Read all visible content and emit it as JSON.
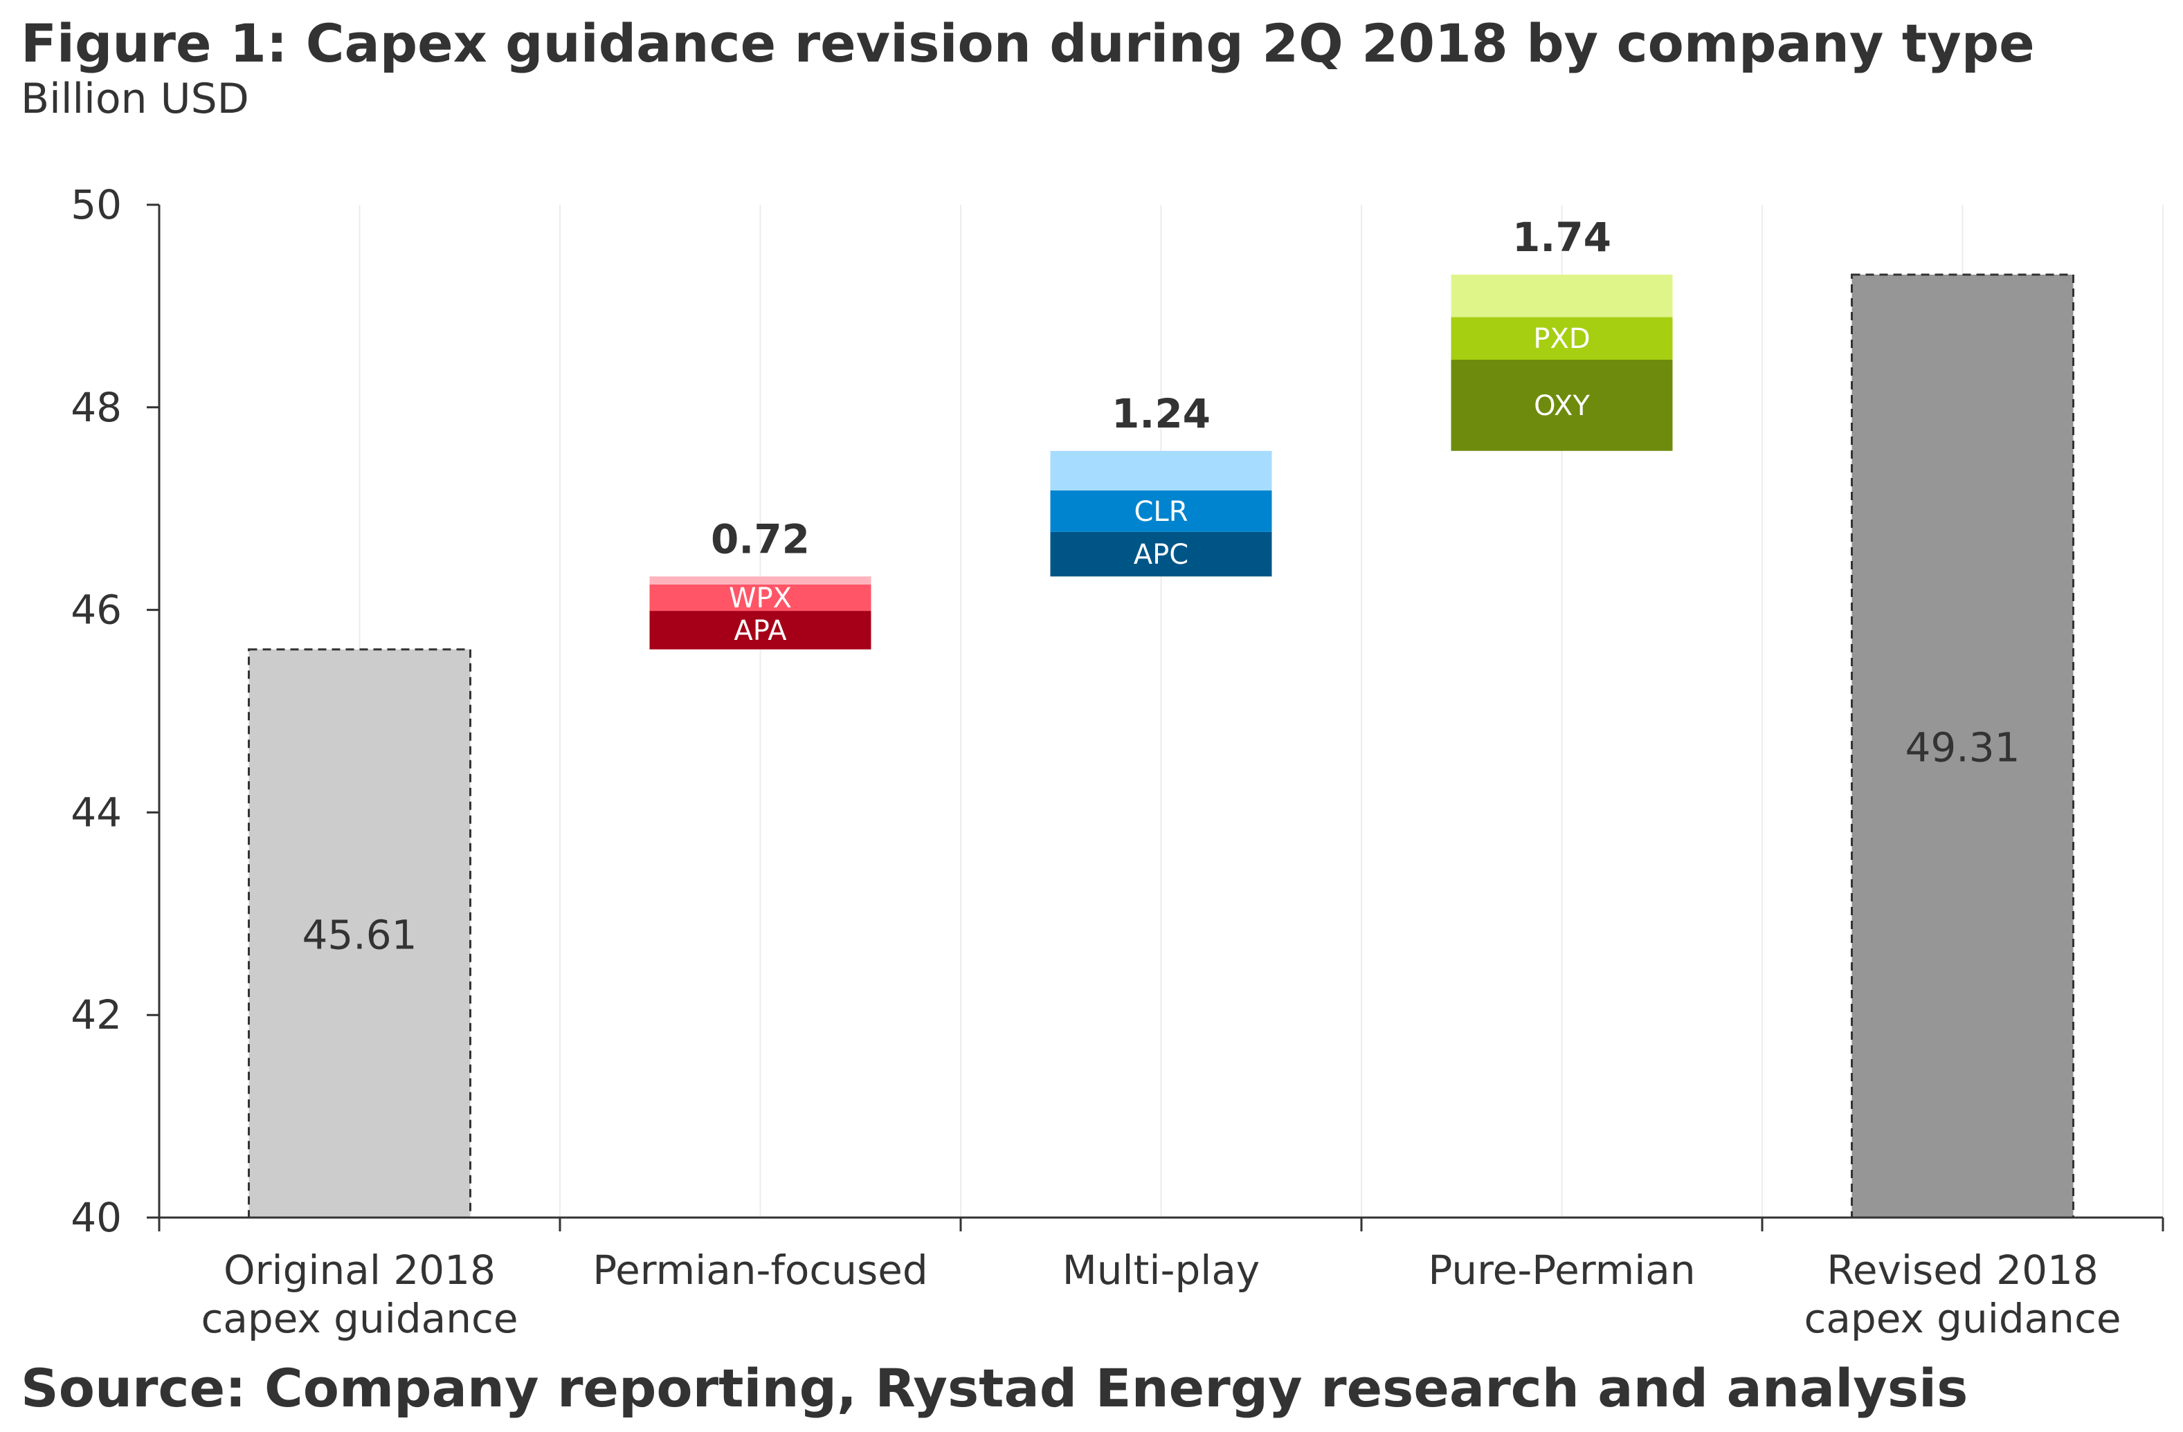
{
  "title": "Figure 1: Capex guidance revision during 2Q 2018 by company type",
  "subtitle": "Billion USD",
  "source": "Source: Company reporting, Rystad Energy research and analysis",
  "colors": {
    "axis": "#333333",
    "grid": "#ececec",
    "original_bar": "#cccccc",
    "revised_bar": "#969696",
    "wpx": "#ff5567",
    "apa": "#a50017",
    "permian_top": "#ffb3bc",
    "multi_top": "#a6dcff",
    "clr": "#0084cf",
    "apc": "#005587",
    "pure_top": "#dff58a",
    "pxd": "#a6cf12",
    "oxy": "#6e8b0d"
  },
  "chart_data": {
    "type": "bar",
    "subtype": "waterfall",
    "title": "Figure 1: Capex guidance revision during 2Q 2018 by company type",
    "subtitle": "Billion USD",
    "ylim": [
      40,
      50
    ],
    "yticks": [
      40,
      42,
      44,
      46,
      48,
      50
    ],
    "grid": "vertical",
    "categories": [
      [
        "Original 2018",
        "capex guidance"
      ],
      [
        "Permian-focused"
      ],
      [
        "Multi-play"
      ],
      [
        "Pure-Permian"
      ],
      [
        "Revised 2018",
        "capex guidance"
      ]
    ],
    "totals": [
      {
        "category_index": 0,
        "value": 45.61,
        "label": "45.61",
        "style": "light"
      },
      {
        "category_index": 4,
        "value": 49.31,
        "label": "49.31",
        "style": "dark"
      }
    ],
    "increments": [
      {
        "category_index": 1,
        "base": 45.61,
        "total": 0.72,
        "total_label": "0.72",
        "segments": [
          {
            "name": "APA",
            "value": 0.38,
            "color_key": "apa"
          },
          {
            "name": "WPX",
            "value": 0.26,
            "color_key": "wpx"
          },
          {
            "name": "",
            "value": 0.08,
            "color_key": "permian_top"
          }
        ]
      },
      {
        "category_index": 2,
        "base": 46.33,
        "total": 1.24,
        "total_label": "1.24",
        "segments": [
          {
            "name": "APC",
            "value": 0.44,
            "color_key": "apc"
          },
          {
            "name": "CLR",
            "value": 0.41,
            "color_key": "clr"
          },
          {
            "name": "",
            "value": 0.39,
            "color_key": "multi_top"
          }
        ]
      },
      {
        "category_index": 3,
        "base": 47.57,
        "total": 1.74,
        "total_label": "1.74",
        "segments": [
          {
            "name": "OXY",
            "value": 0.9,
            "color_key": "oxy"
          },
          {
            "name": "PXD",
            "value": 0.42,
            "color_key": "pxd"
          },
          {
            "name": "",
            "value": 0.42,
            "color_key": "pure_top"
          }
        ]
      }
    ]
  }
}
